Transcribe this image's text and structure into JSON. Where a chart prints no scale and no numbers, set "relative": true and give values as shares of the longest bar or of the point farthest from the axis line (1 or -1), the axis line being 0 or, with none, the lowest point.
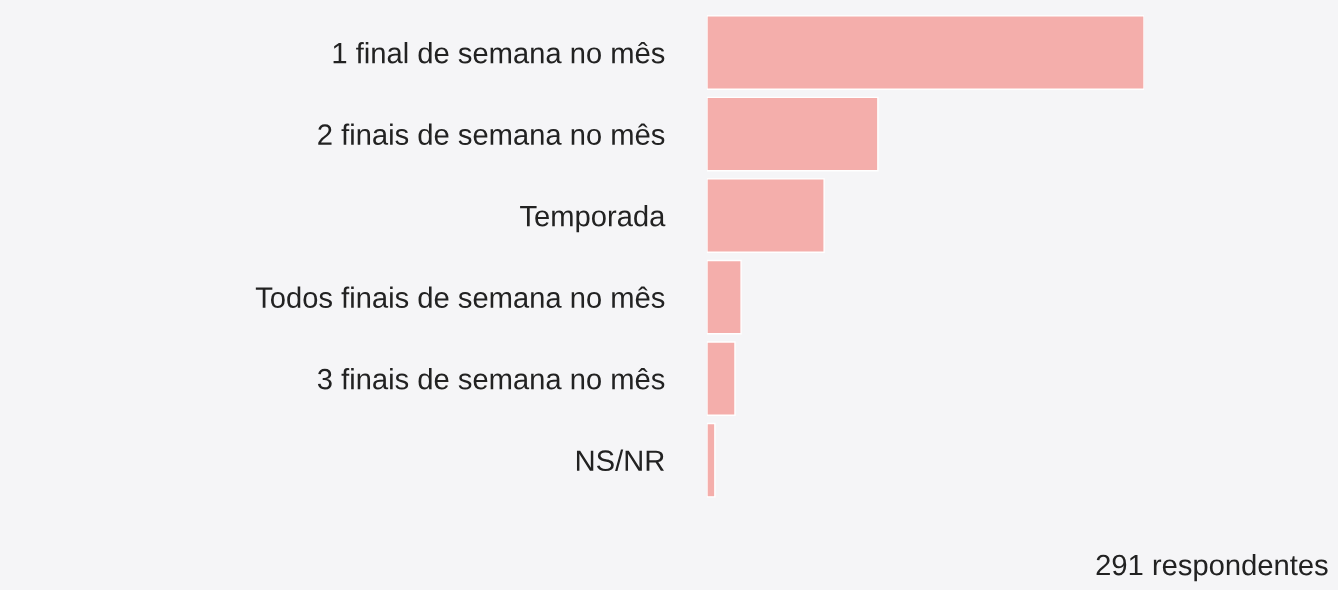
{
  "chart_data": {
    "type": "bar",
    "orientation": "horizontal",
    "relative": true,
    "categories": [
      "1 final de semana no mês",
      "2 finais de semana no mês",
      "Temporada",
      "Todos finais de semana no mês",
      "3 finais de semana no mês",
      "NS/NR"
    ],
    "values": [
      1,
      0.391,
      0.268,
      0.078,
      0.064,
      0.018
    ],
    "color": "#f4aeab",
    "annotations": [
      "291 respondentes"
    ],
    "grid": false,
    "legend": false
  }
}
